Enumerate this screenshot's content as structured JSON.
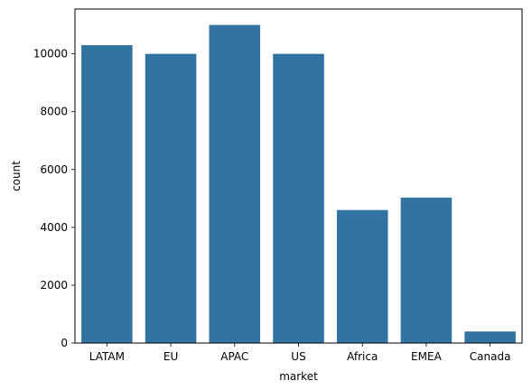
{
  "chart_data": {
    "type": "bar",
    "title": "",
    "xlabel": "market",
    "ylabel": "count",
    "categories": [
      "LATAM",
      "EU",
      "APAC",
      "US",
      "Africa",
      "EMEA",
      "Canada"
    ],
    "values": [
      10300,
      10000,
      11000,
      10000,
      4600,
      5030,
      400
    ],
    "ylim": [
      0,
      11550
    ],
    "yticks": [
      0,
      2000,
      4000,
      6000,
      8000,
      10000
    ],
    "grid": false,
    "bar_color": "#3274a1",
    "legend": null
  }
}
